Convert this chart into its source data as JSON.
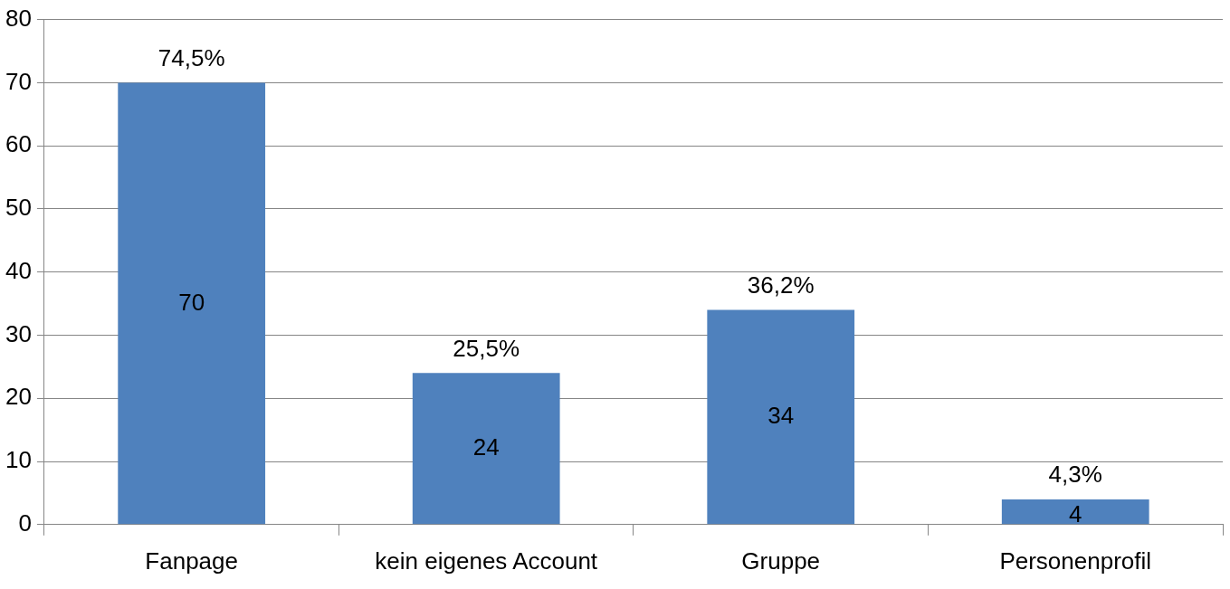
{
  "chart_data": {
    "type": "bar",
    "categories": [
      "Fanpage",
      "kein eigenes Account",
      "Gruppe",
      "Personenprofil"
    ],
    "values": [
      70,
      24,
      34,
      4
    ],
    "color": "#4f81bd",
    "ylim": [
      0,
      80
    ],
    "yticks": [
      0,
      10,
      20,
      30,
      40,
      50,
      60,
      70,
      80
    ],
    "grid": "y",
    "legend": false,
    "data_labels": true,
    "annotations": [
      {
        "text": "74,5%",
        "x": "Fanpage",
        "y": 70
      },
      {
        "text": "25,5%",
        "x": "kein eigenes Account",
        "y": 24
      },
      {
        "text": "36,2%",
        "x": "Gruppe",
        "y": 34
      },
      {
        "text": "4,3%",
        "x": "Personenprofil",
        "y": 4
      }
    ]
  }
}
